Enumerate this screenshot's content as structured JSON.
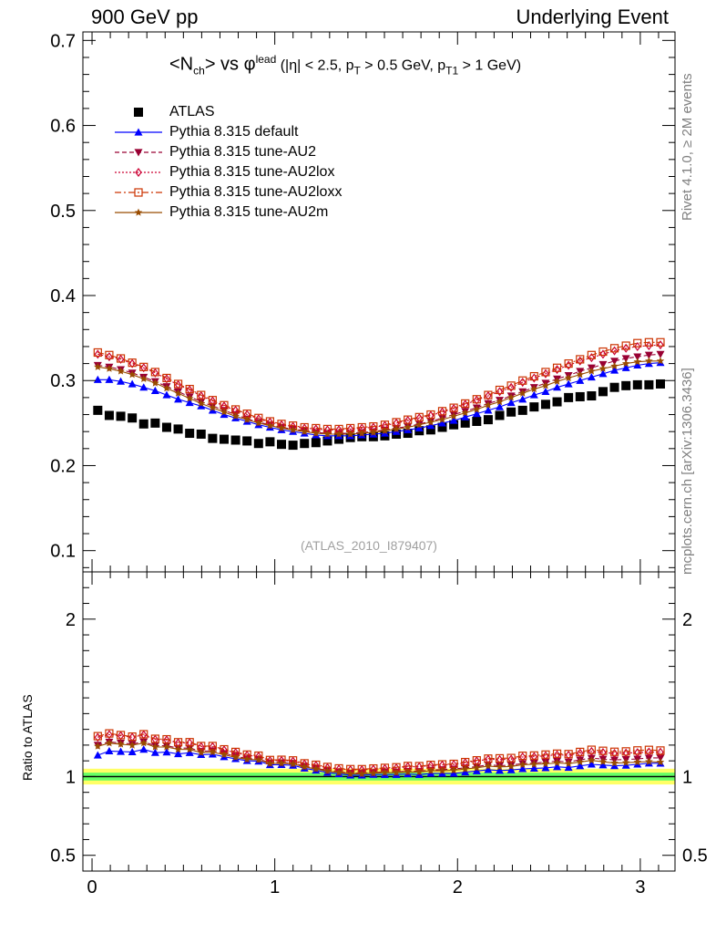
{
  "header": {
    "left": "900 GeV pp",
    "right": "Underlying Event"
  },
  "side_labels": {
    "rivet": "Rivet 4.1.0, ≥ 2M events",
    "mcplots": "mcplots.cern.ch [arXiv:1306.3436]"
  },
  "title": {
    "main_pre": "<N",
    "main_sub": "ch",
    "main_mid": "> vs φ",
    "main_sup": "lead",
    "cuts_pre": " (|η| < 2.5, p",
    "cuts_sub1": "T",
    "cuts_mid": " > 0.5 GeV, p",
    "cuts_sub2": "T1",
    "cuts_post": " > 1 GeV)"
  },
  "analysis_id": "(ATLAS_2010_I879407)",
  "ratio_ylabel": "Ratio to ATLAS",
  "colors": {
    "atlas": "#000000",
    "default": "#0000ff",
    "au2": "#990033",
    "au2lox": "#cc0033",
    "au2loxx": "#cc3300",
    "au2m": "#994c00",
    "band_inner": "#66ff66",
    "band_outer": "#ffff66"
  },
  "chart_data": [
    {
      "type": "scatter",
      "panel": "main",
      "xlim": [
        -0.05,
        3.19
      ],
      "ylim": [
        0.075,
        0.71
      ],
      "yticks": [
        0.1,
        0.2,
        0.3,
        0.4,
        0.5,
        0.6,
        0.7
      ],
      "ytick_labels": [
        "0.1",
        "0.2",
        "0.3",
        "0.4",
        "0.5",
        "0.6",
        "0.7"
      ],
      "x": [
        0.0314,
        0.0942,
        0.1571,
        0.2199,
        0.2827,
        0.3456,
        0.4084,
        0.4712,
        0.5341,
        0.5969,
        0.6597,
        0.7226,
        0.7854,
        0.8482,
        0.9111,
        0.9739,
        1.0367,
        1.0996,
        1.1624,
        1.2252,
        1.2881,
        1.3509,
        1.4137,
        1.4765,
        1.5394,
        1.6022,
        1.665,
        1.7279,
        1.7907,
        1.8535,
        1.9164,
        1.9792,
        2.042,
        2.1049,
        2.1677,
        2.2305,
        2.2934,
        2.3562,
        2.419,
        2.4819,
        2.5447,
        2.6075,
        2.6704,
        2.7332,
        2.796,
        2.8588,
        2.9217,
        2.9845,
        3.0473,
        3.1102
      ],
      "series": [
        {
          "name": "ATLAS",
          "marker": "square",
          "values": [
            0.265,
            0.259,
            0.258,
            0.256,
            0.249,
            0.25,
            0.245,
            0.243,
            0.238,
            0.237,
            0.232,
            0.231,
            0.23,
            0.229,
            0.226,
            0.228,
            0.225,
            0.224,
            0.226,
            0.227,
            0.229,
            0.231,
            0.233,
            0.234,
            0.234,
            0.235,
            0.237,
            0.238,
            0.241,
            0.242,
            0.245,
            0.248,
            0.25,
            0.252,
            0.254,
            0.259,
            0.263,
            0.265,
            0.269,
            0.272,
            0.275,
            0.28,
            0.281,
            0.282,
            0.287,
            0.292,
            0.294,
            0.295,
            0.295,
            0.296
          ]
        },
        {
          "name": "Pythia 8.315 default",
          "marker": "triangle-up",
          "line": "solid",
          "values": [
            0.301,
            0.301,
            0.299,
            0.296,
            0.292,
            0.288,
            0.283,
            0.278,
            0.274,
            0.27,
            0.265,
            0.26,
            0.256,
            0.252,
            0.248,
            0.245,
            0.242,
            0.24,
            0.238,
            0.236,
            0.235,
            0.235,
            0.235,
            0.236,
            0.237,
            0.238,
            0.24,
            0.242,
            0.244,
            0.247,
            0.25,
            0.253,
            0.257,
            0.261,
            0.265,
            0.269,
            0.274,
            0.278,
            0.283,
            0.287,
            0.292,
            0.296,
            0.3,
            0.304,
            0.308,
            0.312,
            0.315,
            0.318,
            0.32,
            0.321
          ]
        },
        {
          "name": "Pythia 8.315 tune-AU2",
          "marker": "triangle-down",
          "line": "dashed",
          "values": [
            0.318,
            0.316,
            0.313,
            0.309,
            0.304,
            0.299,
            0.293,
            0.287,
            0.281,
            0.275,
            0.27,
            0.265,
            0.26,
            0.255,
            0.251,
            0.248,
            0.245,
            0.243,
            0.241,
            0.239,
            0.238,
            0.238,
            0.238,
            0.239,
            0.24,
            0.242,
            0.244,
            0.246,
            0.249,
            0.252,
            0.256,
            0.26,
            0.264,
            0.268,
            0.273,
            0.277,
            0.282,
            0.287,
            0.292,
            0.297,
            0.302,
            0.306,
            0.311,
            0.315,
            0.319,
            0.323,
            0.326,
            0.328,
            0.33,
            0.331
          ]
        },
        {
          "name": "Pythia 8.315 tune-AU2lox",
          "marker": "diamond-open",
          "line": "dotted",
          "values": [
            0.331,
            0.328,
            0.325,
            0.32,
            0.315,
            0.309,
            0.302,
            0.295,
            0.289,
            0.282,
            0.276,
            0.27,
            0.265,
            0.26,
            0.255,
            0.251,
            0.248,
            0.246,
            0.244,
            0.243,
            0.242,
            0.242,
            0.243,
            0.244,
            0.245,
            0.247,
            0.25,
            0.253,
            0.256,
            0.259,
            0.263,
            0.267,
            0.272,
            0.277,
            0.282,
            0.287,
            0.292,
            0.298,
            0.303,
            0.308,
            0.313,
            0.318,
            0.323,
            0.327,
            0.331,
            0.335,
            0.338,
            0.34,
            0.341,
            0.342
          ]
        },
        {
          "name": "Pythia 8.315 tune-AU2loxx",
          "marker": "square-open",
          "line": "dashdot",
          "values": [
            0.333,
            0.33,
            0.326,
            0.321,
            0.316,
            0.31,
            0.303,
            0.296,
            0.29,
            0.283,
            0.277,
            0.271,
            0.266,
            0.261,
            0.256,
            0.252,
            0.249,
            0.247,
            0.245,
            0.244,
            0.243,
            0.243,
            0.244,
            0.245,
            0.246,
            0.248,
            0.251,
            0.254,
            0.257,
            0.26,
            0.264,
            0.268,
            0.273,
            0.278,
            0.283,
            0.289,
            0.294,
            0.3,
            0.305,
            0.31,
            0.315,
            0.32,
            0.325,
            0.33,
            0.334,
            0.338,
            0.341,
            0.344,
            0.345,
            0.345
          ]
        },
        {
          "name": "Pythia 8.315 tune-AU2m",
          "marker": "star",
          "line": "solid",
          "values": [
            0.316,
            0.314,
            0.311,
            0.307,
            0.302,
            0.297,
            0.291,
            0.285,
            0.279,
            0.273,
            0.268,
            0.263,
            0.258,
            0.254,
            0.25,
            0.247,
            0.244,
            0.242,
            0.24,
            0.238,
            0.237,
            0.237,
            0.237,
            0.238,
            0.239,
            0.241,
            0.243,
            0.245,
            0.248,
            0.251,
            0.254,
            0.258,
            0.262,
            0.266,
            0.271,
            0.275,
            0.28,
            0.285,
            0.29,
            0.294,
            0.299,
            0.303,
            0.307,
            0.311,
            0.314,
            0.317,
            0.32,
            0.322,
            0.323,
            0.323
          ]
        }
      ]
    },
    {
      "type": "scatter",
      "panel": "ratio",
      "ylabel": "Ratio to ATLAS",
      "xlim": [
        -0.05,
        3.19
      ],
      "ylim": [
        0.4,
        2.3
      ],
      "yticks": [
        0.5,
        1,
        2
      ],
      "ytick_labels": [
        "0.5",
        "1",
        "2"
      ],
      "xticks": [
        0,
        1,
        2,
        3
      ],
      "xtick_labels": [
        "0",
        "1",
        "2",
        "3"
      ],
      "reference_line": 1.0,
      "band_inner": [
        0.975,
        1.025
      ],
      "band_outer": [
        0.95,
        1.05
      ]
    }
  ]
}
